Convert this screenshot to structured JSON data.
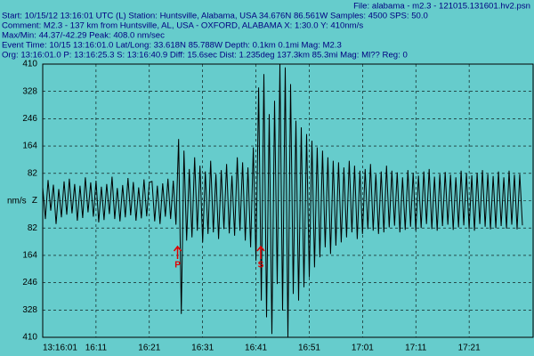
{
  "header": {
    "file": "File: alabama - m2.3 - 121015.131601.hv2.psn",
    "lines": [
      "Start: 10/15/12 13:16:01 UTC (L) Station: Huntsville, Alabama, USA 34.676N 86.561W Samples: 4500  SPS: 50.0",
      "Comment: M2.3 - 137 km from Huntsville, AL, USA - OXFORD, ALABAMA  X: 1:30.0 Y: 410nm/s",
      "Max/Min: 44.37/-42.29  Peak: 408.0 nm/sec",
      "Event Time: 10/15 13:16:01.0 Lat/Long: 33.618N 85.788W Depth: 0.1km 0.1mi Mag: M2.3",
      "Org: 13:16:01.0 P: 13:16:25.3 S: 13:16:40.9 Diff: 15.6sec Dist: 1.235deg 137.3km 85.3mi  Mag: Ml?? Reg: 0"
    ]
  },
  "chart_data": {
    "type": "line",
    "ylabel": "nm/s",
    "xlim": [
      0,
      92
    ],
    "ylim": [
      -410,
      410
    ],
    "grid": true,
    "xticks": [
      {
        "value": 0,
        "label": "13:16:01"
      },
      {
        "value": 10,
        "label": "16:11"
      },
      {
        "value": 20,
        "label": "16:21"
      },
      {
        "value": 30,
        "label": "16:31"
      },
      {
        "value": 40,
        "label": "16:41"
      },
      {
        "value": 50,
        "label": "16:51"
      },
      {
        "value": 60,
        "label": "17:01"
      },
      {
        "value": 70,
        "label": "17:11"
      },
      {
        "value": 80,
        "label": "17:21"
      }
    ],
    "yticks": [
      410,
      328,
      246,
      164,
      82,
      {
        "value": 0,
        "label": "Z"
      },
      {
        "value": -82,
        "label": "82"
      },
      {
        "value": -164,
        "label": "164"
      },
      {
        "value": -246,
        "label": "246"
      },
      {
        "value": -328,
        "label": "328"
      },
      {
        "value": -410,
        "label": "410"
      }
    ],
    "annotations": [
      {
        "label": "P",
        "x": 25.3
      },
      {
        "label": "S",
        "x": 40.9
      }
    ],
    "annotation_color": "#e00000",
    "x": [
      0,
      0.5,
      1,
      1.5,
      2,
      2.5,
      3,
      3.5,
      4,
      4.5,
      5,
      5.5,
      6,
      6.5,
      7,
      7.5,
      8,
      8.5,
      9,
      9.5,
      10,
      10.5,
      11,
      11.5,
      12,
      12.5,
      13,
      13.5,
      14,
      14.5,
      15,
      15.5,
      16,
      16.5,
      17,
      17.5,
      18,
      18.5,
      19,
      19.5,
      20,
      20.5,
      21,
      21.5,
      22,
      22.5,
      23,
      23.5,
      24,
      24.5,
      25,
      25.5,
      26,
      26.5,
      27,
      27.5,
      28,
      28.5,
      29,
      29.5,
      30,
      30.5,
      31,
      31.5,
      32,
      32.5,
      33,
      33.5,
      34,
      34.5,
      35,
      35.5,
      36,
      36.5,
      37,
      37.5,
      38,
      38.5,
      39,
      39.5,
      40,
      40.5,
      41,
      41.5,
      42,
      42.5,
      43,
      43.5,
      44,
      44.5,
      45,
      45.5,
      46,
      46.5,
      47,
      47.5,
      48,
      48.5,
      49,
      49.5,
      50,
      50.5,
      51,
      51.5,
      52,
      52.5,
      53,
      53.5,
      54,
      54.5,
      55,
      55.5,
      56,
      56.5,
      57,
      57.5,
      58,
      58.5,
      59,
      59.5,
      60,
      60.5,
      61,
      61.5,
      62,
      62.5,
      63,
      63.5,
      64,
      64.5,
      65,
      65.5,
      66,
      66.5,
      67,
      67.5,
      68,
      68.5,
      69,
      69.5,
      70,
      70.5,
      71,
      71.5,
      72,
      72.5,
      73,
      73.5,
      74,
      74.5,
      75,
      75.5,
      76,
      76.5,
      77,
      77.5,
      78,
      78.5,
      79,
      79.5,
      80,
      80.5,
      81,
      81.5,
      82,
      82.5,
      83,
      83.5,
      84,
      84.5,
      85,
      85.5,
      86,
      86.5,
      87,
      87.5,
      88,
      88.5,
      89,
      89.5,
      90
    ],
    "series": [
      {
        "color": "#000000",
        "values": [
          40,
          -55,
          62,
          -30,
          48,
          -70,
          35,
          -50,
          58,
          -42,
          66,
          -38,
          50,
          -60,
          45,
          -52,
          70,
          -35,
          55,
          -48,
          60,
          -65,
          42,
          -58,
          50,
          -40,
          72,
          -55,
          38,
          -62,
          47,
          -50,
          68,
          -44,
          56,
          -60,
          40,
          -53,
          64,
          -47,
          55,
          58,
          -62,
          45,
          -70,
          52,
          -48,
          66,
          -55,
          60,
          -72,
          185,
          -340,
          150,
          -120,
          95,
          -110,
          130,
          -90,
          105,
          -125,
          88,
          -100,
          120,
          -95,
          80,
          -115,
          92,
          -85,
          110,
          -98,
          75,
          -105,
          130,
          -90,
          115,
          -120,
          100,
          -140,
          160,
          -180,
          340,
          -300,
          380,
          -350,
          260,
          -400,
          300,
          -250,
          410,
          -330,
          400,
          -410,
          350,
          -280,
          240,
          -300,
          220,
          -260,
          200,
          -230,
          180,
          -200,
          160,
          -170,
          150,
          -140,
          130,
          -160,
          120,
          -135,
          115,
          -125,
          100,
          -110,
          120,
          -95,
          105,
          -115,
          90,
          -100,
          95,
          -85,
          110,
          -90,
          80,
          -100,
          88,
          -95,
          105,
          -80,
          90,
          -75,
          85,
          -95,
          70,
          -88,
          92,
          -78,
          84,
          -90,
          75,
          -82,
          88,
          -70,
          95,
          -85,
          72,
          -90,
          80,
          -76,
          86,
          -72,
          78,
          -88,
          70,
          -80,
          90,
          -74,
          82,
          -85,
          76,
          -90,
          84,
          -70,
          92,
          -78,
          80,
          -86,
          74,
          -82,
          88,
          -76,
          70,
          -84,
          90,
          -72,
          78,
          -86,
          80,
          -74
        ]
      }
    ]
  }
}
